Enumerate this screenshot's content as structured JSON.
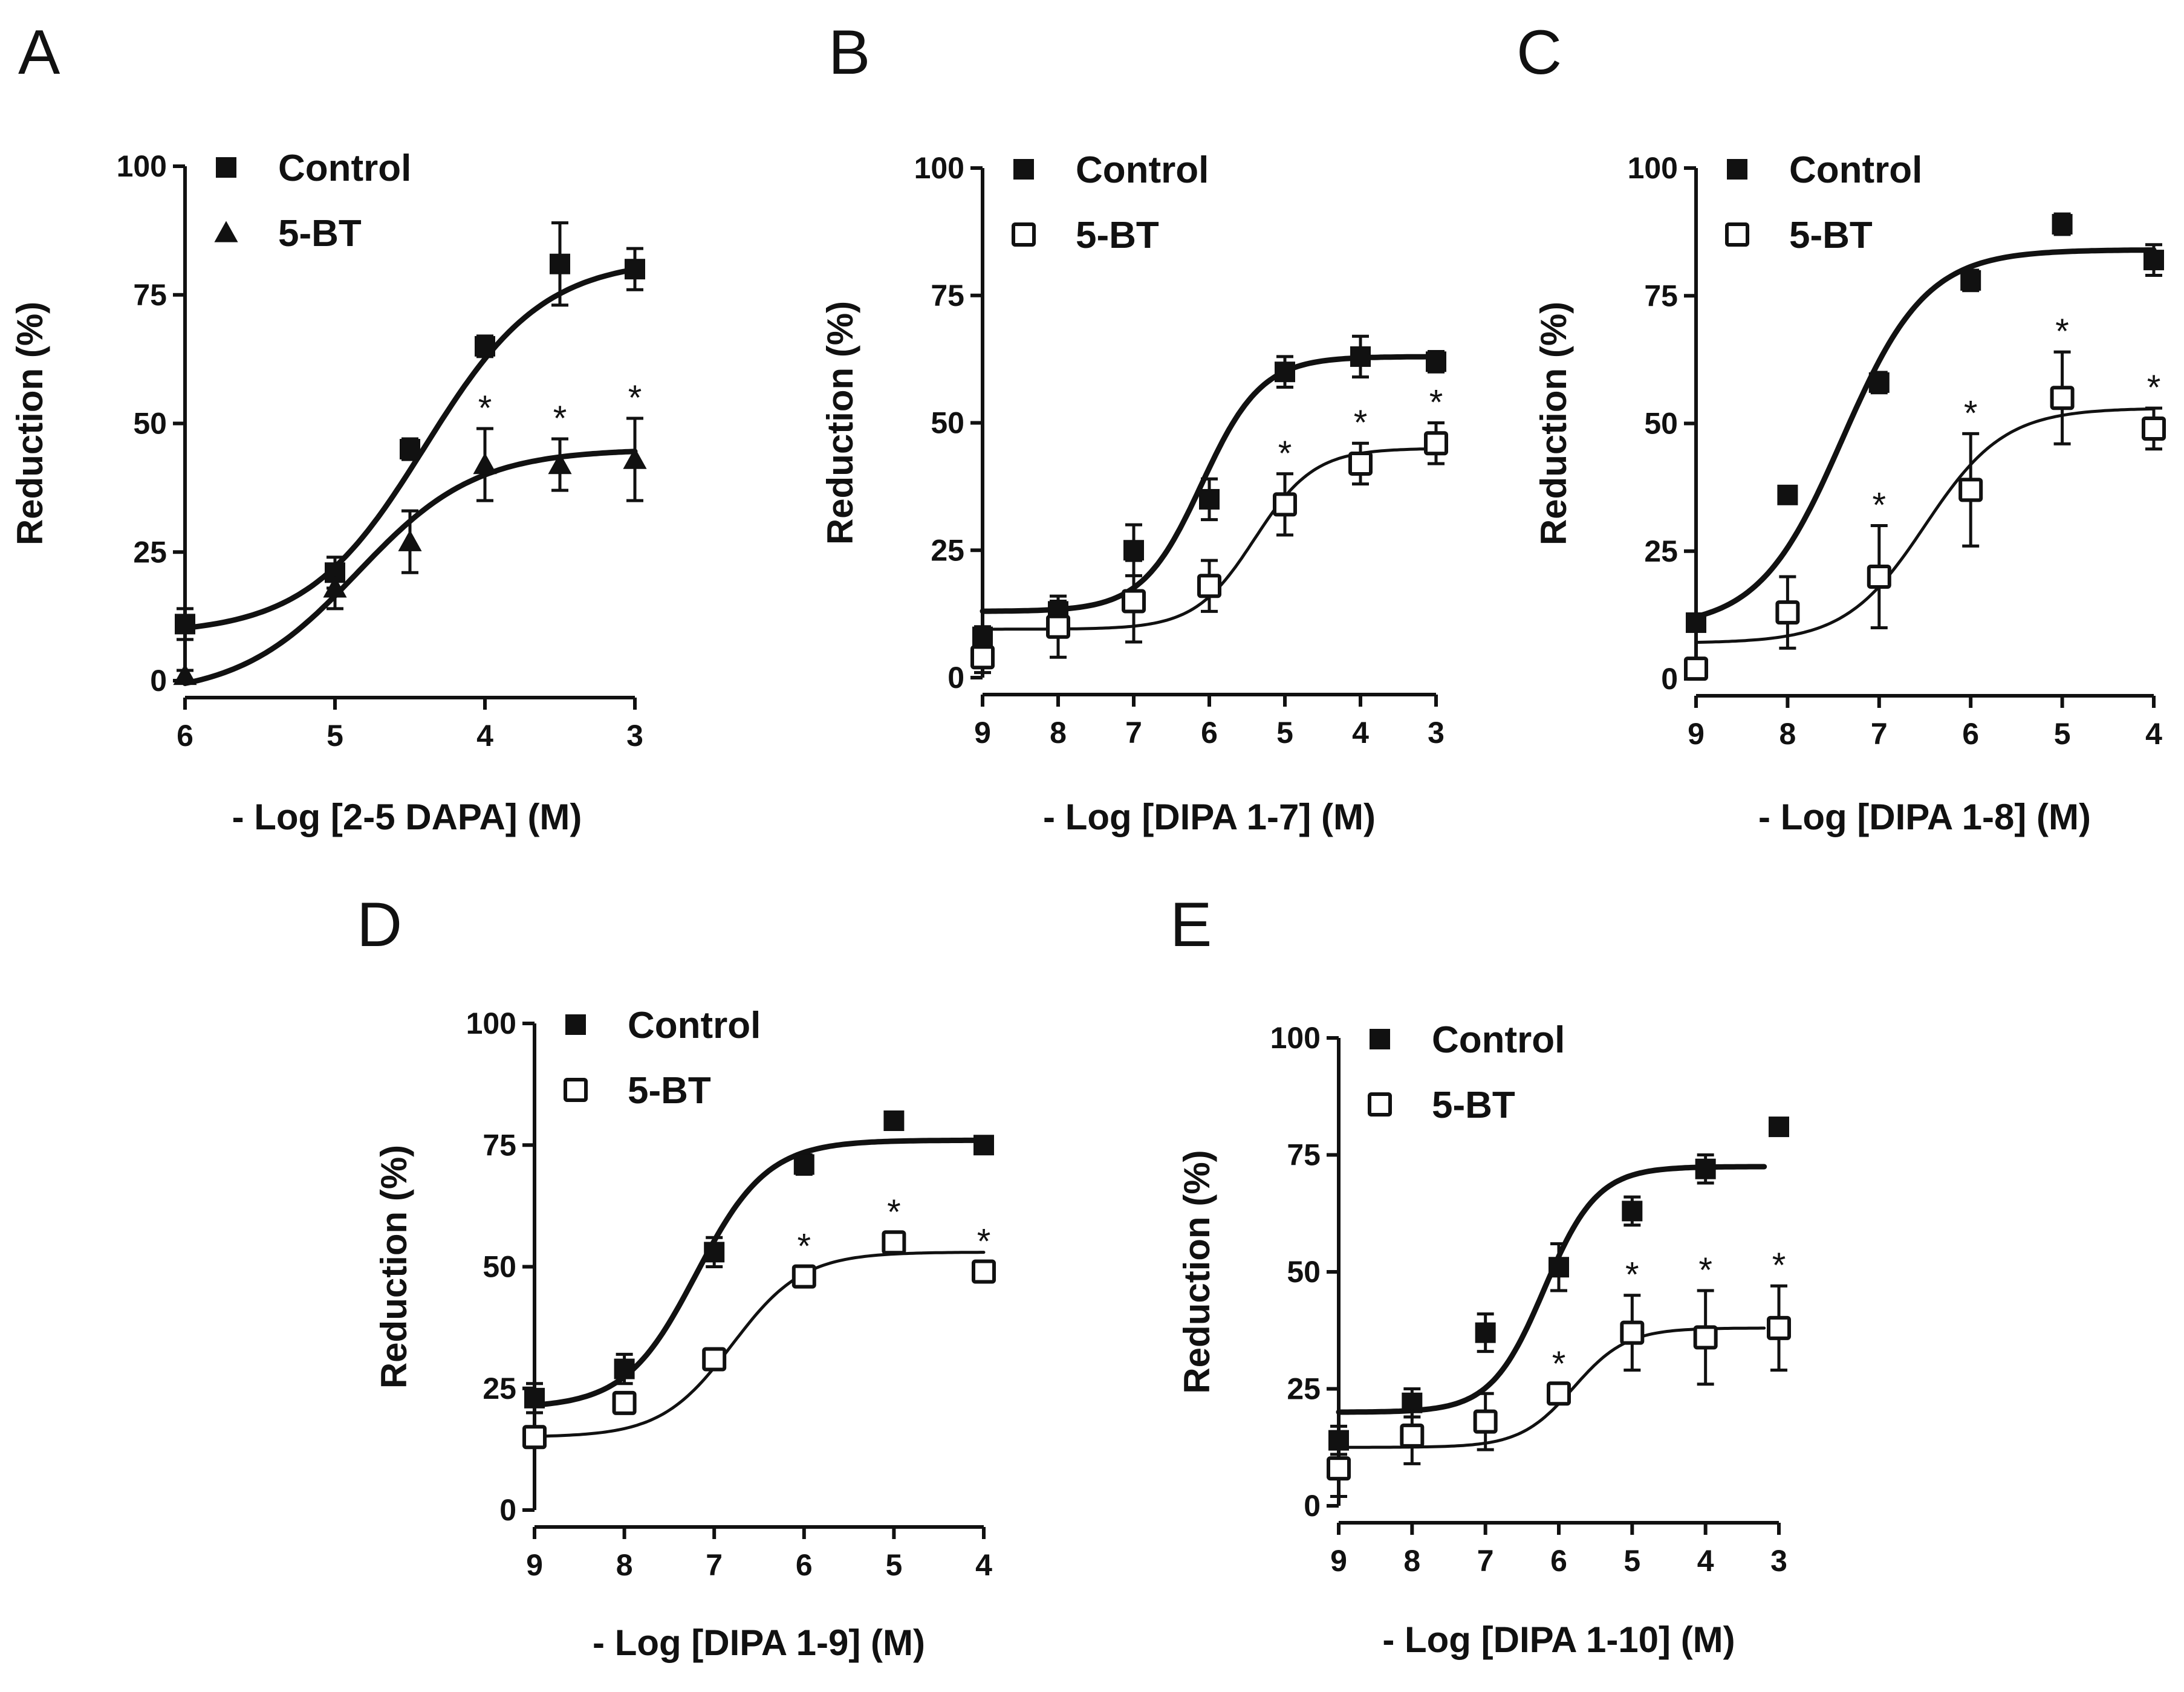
{
  "figure": {
    "colors": {
      "ink": "#111111",
      "background": "#ffffff"
    }
  },
  "chart_data": [
    {
      "panel": "A",
      "type": "scatter",
      "xlabel": "- Log [2-5 DAPA] (M)",
      "ylabel": "Reduction (%)",
      "xlim": [
        6,
        3
      ],
      "ylim": [
        0,
        100
      ],
      "xticks": [
        "6",
        "5",
        "4",
        "3"
      ],
      "yticks": [
        "0",
        "25",
        "50",
        "75",
        "100"
      ],
      "legend_position": "top-left",
      "series": [
        {
          "name": "Control",
          "marker": "filled-square",
          "fit": "thick",
          "x": [
            6,
            5,
            4.5,
            4,
            3.5,
            3
          ],
          "y": [
            11,
            21,
            45,
            65,
            81,
            80
          ],
          "err": [
            3,
            3,
            2,
            2,
            8,
            4
          ],
          "sig": [
            false,
            false,
            false,
            false,
            false,
            false
          ],
          "curve": {
            "bottom": 9,
            "top": 82,
            "logec50": 4.4,
            "hill": 1.1
          }
        },
        {
          "name": "5-BT",
          "marker": "filled-triangle",
          "fit": "thick",
          "x": [
            6,
            5,
            4.5,
            4,
            3.5,
            3
          ],
          "y": [
            1,
            18,
            27,
            42,
            42,
            43
          ],
          "err": [
            1,
            4,
            6,
            7,
            5,
            8
          ],
          "sig": [
            false,
            false,
            false,
            true,
            true,
            true
          ],
          "curve": {
            "bottom": -3,
            "top": 45,
            "logec50": 4.85,
            "hill": 1.1
          }
        }
      ]
    },
    {
      "panel": "B",
      "type": "scatter",
      "xlabel": "- Log [DIPA 1-7] (M)",
      "ylabel": "Reduction (%)",
      "xlim": [
        9,
        3
      ],
      "ylim": [
        0,
        100
      ],
      "xticks": [
        "9",
        "8",
        "7",
        "6",
        "5",
        "4",
        "3"
      ],
      "yticks": [
        "0",
        "25",
        "50",
        "75",
        "100"
      ],
      "legend_position": "top-left",
      "series": [
        {
          "name": "Control",
          "marker": "filled-square",
          "fit": "thick",
          "x": [
            9,
            8,
            7,
            6,
            5,
            4,
            3
          ],
          "y": [
            8,
            13,
            25,
            35,
            60,
            63,
            62
          ],
          "err": [
            2,
            2,
            5,
            4,
            3,
            4,
            2
          ],
          "sig": [
            false,
            false,
            false,
            false,
            false,
            false,
            false
          ],
          "curve": {
            "bottom": 13,
            "top": 63,
            "logec50": 6.1,
            "hill": 1.1
          }
        },
        {
          "name": "5-BT",
          "marker": "open-square",
          "fit": "thin",
          "x": [
            9,
            8,
            7,
            6,
            5,
            4,
            3
          ],
          "y": [
            4,
            10,
            15,
            18,
            34,
            42,
            46
          ],
          "err": [
            3,
            6,
            8,
            5,
            6,
            4,
            4
          ],
          "sig": [
            false,
            false,
            false,
            false,
            true,
            true,
            true
          ],
          "curve": {
            "bottom": 9.5,
            "top": 45,
            "logec50": 5.4,
            "hill": 1.1
          }
        }
      ]
    },
    {
      "panel": "C",
      "type": "scatter",
      "xlabel": "- Log [DIPA 1-8] (M)",
      "ylabel": "Reduction (%)",
      "xlim": [
        9,
        4
      ],
      "ylim": [
        0,
        100
      ],
      "xticks": [
        "9",
        "8",
        "7",
        "6",
        "5",
        "4"
      ],
      "yticks": [
        "0",
        "25",
        "50",
        "75",
        "100"
      ],
      "legend_position": "top-left",
      "series": [
        {
          "name": "Control",
          "marker": "filled-square",
          "fit": "thick",
          "x": [
            9,
            8,
            7,
            6,
            5,
            4
          ],
          "y": [
            11,
            36,
            58,
            78,
            89,
            82
          ],
          "err": [
            1,
            1,
            2,
            2,
            2,
            3
          ],
          "sig": [
            false,
            false,
            false,
            false,
            false,
            false
          ],
          "curve": {
            "bottom": 10,
            "top": 84,
            "logec50": 7.4,
            "hill": 0.95
          }
        },
        {
          "name": "5-BT",
          "marker": "open-square",
          "fit": "thin",
          "x": [
            9,
            8,
            7,
            6,
            5,
            4
          ],
          "y": [
            2,
            13,
            20,
            37,
            55,
            49
          ],
          "err": [
            2,
            7,
            10,
            11,
            9,
            4
          ],
          "sig": [
            false,
            false,
            true,
            true,
            true,
            true
          ],
          "curve": {
            "bottom": 7,
            "top": 53,
            "logec50": 6.5,
            "hill": 1.0
          }
        }
      ]
    },
    {
      "panel": "D",
      "type": "scatter",
      "xlabel": "- Log [DIPA 1-9] (M)",
      "ylabel": "Reduction (%)",
      "xlim": [
        9,
        4
      ],
      "ylim": [
        0,
        100
      ],
      "xticks": [
        "9",
        "8",
        "7",
        "6",
        "5",
        "4"
      ],
      "yticks": [
        "0",
        "25",
        "50",
        "75",
        "100"
      ],
      "legend_position": "top-left",
      "series": [
        {
          "name": "Control",
          "marker": "filled-square",
          "fit": "thick",
          "x": [
            9,
            8,
            7,
            6,
            5,
            4
          ],
          "y": [
            23,
            29,
            53,
            71,
            80,
            75
          ],
          "err": [
            3,
            3,
            3,
            2,
            1,
            1
          ],
          "sig": [
            false,
            false,
            false,
            false,
            false,
            false
          ],
          "curve": {
            "bottom": 21,
            "top": 76,
            "logec50": 7.2,
            "hill": 1.1
          }
        },
        {
          "name": "5-BT",
          "marker": "open-square",
          "fit": "thin",
          "x": [
            9,
            8,
            7,
            6,
            5,
            4
          ],
          "y": [
            15,
            22,
            31,
            48,
            55,
            49
          ],
          "err": [
            1,
            1,
            2,
            2,
            2,
            2
          ],
          "sig": [
            false,
            false,
            false,
            true,
            true,
            true
          ],
          "curve": {
            "bottom": 15,
            "top": 53,
            "logec50": 6.8,
            "hill": 1.1
          }
        }
      ]
    },
    {
      "panel": "E",
      "type": "scatter",
      "xlabel": "- Log [DIPA 1-10] (M)",
      "ylabel": "Reduction (%)",
      "xlim": [
        9,
        3
      ],
      "ylim": [
        0,
        100
      ],
      "xticks": [
        "9",
        "8",
        "7",
        "6",
        "5",
        "4",
        "3"
      ],
      "yticks": [
        "0",
        "25",
        "50",
        "75",
        "100"
      ],
      "legend_position": "top-left",
      "series": [
        {
          "name": "Control",
          "marker": "filled-square",
          "fit": "thick",
          "x": [
            9,
            8,
            7,
            6,
            5,
            4,
            3
          ],
          "y": [
            14,
            22,
            37,
            51,
            63,
            72,
            81
          ],
          "err": [
            3,
            3,
            4,
            5,
            3,
            3,
            1
          ],
          "sig": [
            false,
            false,
            false,
            false,
            false,
            false,
            false
          ],
          "curve": {
            "bottom": 20,
            "top": 72.5,
            "logec50": 6.2,
            "hill": 1.2,
            "xend": 3.2
          }
        },
        {
          "name": "5-BT",
          "marker": "open-square",
          "fit": "thin",
          "x": [
            9,
            8,
            7,
            6,
            5,
            4,
            3
          ],
          "y": [
            8,
            15,
            18,
            24,
            37,
            36,
            38
          ],
          "err": [
            6,
            6,
            6,
            2,
            8,
            10,
            9
          ],
          "sig": [
            false,
            false,
            false,
            true,
            true,
            true,
            true
          ],
          "curve": {
            "bottom": 12.5,
            "top": 38,
            "logec50": 5.8,
            "hill": 1.2,
            "xend": 3.2
          }
        }
      ]
    }
  ]
}
